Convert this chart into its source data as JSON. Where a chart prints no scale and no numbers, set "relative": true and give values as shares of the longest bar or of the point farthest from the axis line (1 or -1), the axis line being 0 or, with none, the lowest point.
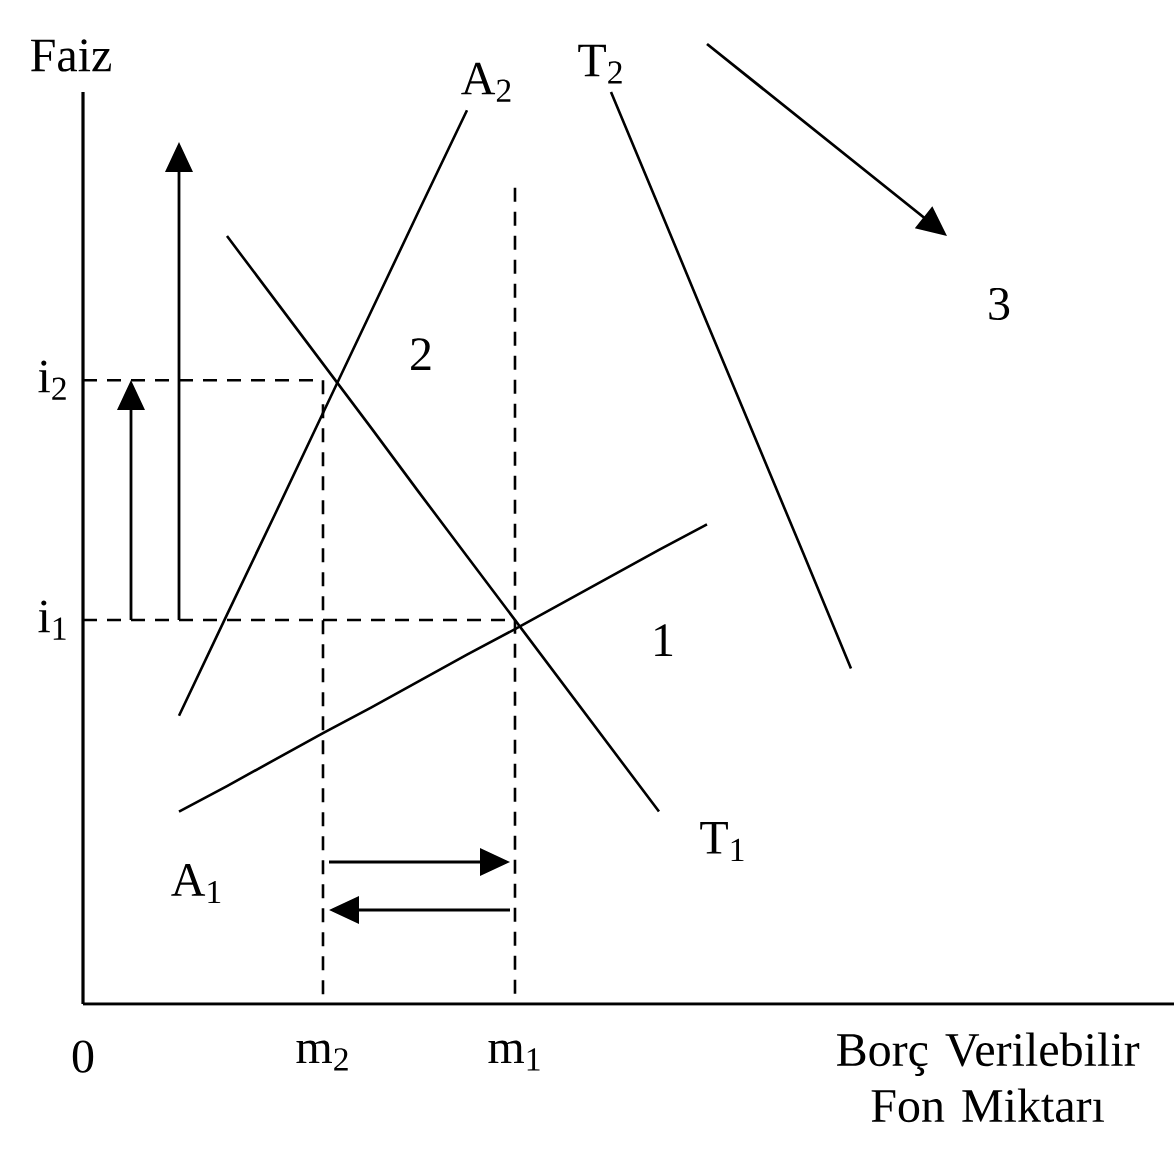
{
  "chart_data": {
    "type": "line",
    "relative": true,
    "ylabel": "Faiz",
    "xlabel": "Borç Verilebilir Fon Miktarı",
    "categories": [
      "0",
      null,
      null,
      null,
      null,
      "m$_{2}$",
      null,
      null,
      null,
      "m$_{1}$",
      null,
      null,
      null,
      null,
      null,
      null,
      null,
      null,
      null,
      null,
      null,
      null,
      null
    ],
    "series": [
      {
        "name": "A$_{1}$",
        "color": "#000000",
        "values": [
          null,
          null,
          0.211,
          0.239,
          0.268,
          0.297,
          0.325,
          0.354,
          0.383,
          0.411,
          0.44,
          0.469,
          0.498,
          0.526,
          null,
          null,
          null,
          null,
          null,
          null,
          null,
          null,
          null
        ]
      },
      {
        "name": "A$_{2}$",
        "color": "#000000",
        "values": [
          null,
          null,
          0.316,
          0.427,
          0.537,
          0.648,
          0.759,
          0.87,
          0.98,
          null,
          null,
          null,
          null,
          null,
          null,
          null,
          null,
          null,
          null,
          null,
          null,
          null,
          null
        ]
      },
      {
        "name": "T$_{1}$",
        "color": "#000000",
        "values": [
          null,
          null,
          null,
          0.842,
          0.772,
          0.702,
          0.632,
          0.561,
          0.491,
          0.421,
          0.351,
          0.281,
          0.211,
          null,
          null,
          null,
          null,
          null,
          null,
          null,
          null,
          null,
          null
        ]
      },
      {
        "name": "T$_{2}$",
        "color": "#000000",
        "values": [
          null,
          null,
          null,
          null,
          null,
          null,
          null,
          null,
          null,
          null,
          null,
          1,
          0.874,
          0.747,
          0.621,
          0.495,
          0.368,
          null,
          null,
          null,
          null,
          null,
          null
        ]
      },
      {
        "color": "#000000",
        "line_style": "dashed",
        "x": [
          "0",
          "m$_{2}$",
          "m$_{2}$"
        ],
        "values": [
          0.684,
          0.684,
          0
        ]
      },
      {
        "color": "#000000",
        "line_style": "dashed",
        "x": [
          "0",
          "m$_{1}$"
        ],
        "values": [
          0.421,
          0.421
        ]
      },
      {
        "color": "#000000",
        "line_style": "dashed",
        "x": [
          "m$_{1}$",
          "m$_{1}$"
        ],
        "values": [
          0.895,
          0
        ]
      }
    ],
    "annotations": [
      {
        "text": "i$_{1}$",
        "x": "0",
        "y": 0.421
      },
      {
        "text": "i$_{2}$",
        "x": "0",
        "y": 0.684
      },
      {
        "text": "1",
        "x": "m$_{1}$",
        "y": 0.421
      },
      {
        "text": "2",
        "x": "m$_{2}$",
        "y": 0.684
      },
      "3"
    ]
  }
}
